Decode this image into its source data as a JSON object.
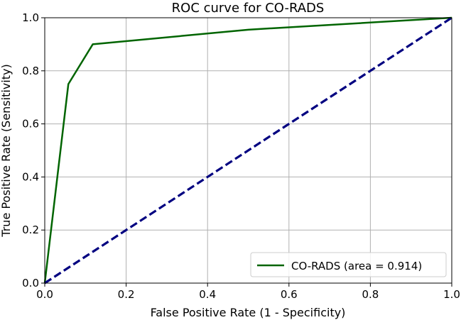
{
  "chart_data": {
    "type": "line",
    "title": "ROC curve for CO-RADS",
    "xlabel": "False Positive Rate (1 - Specificity)",
    "ylabel": "True Positive Rate (Sensitivity)",
    "xlim": [
      0.0,
      1.0
    ],
    "ylim": [
      0.0,
      1.0
    ],
    "x_ticks": [
      0.0,
      0.2,
      0.4,
      0.6,
      0.8,
      1.0
    ],
    "x_tick_labels": [
      "0.0",
      "0.2",
      "0.4",
      "0.6",
      "0.8",
      "1.0"
    ],
    "y_ticks": [
      0.0,
      0.2,
      0.4,
      0.6,
      0.8,
      1.0
    ],
    "y_tick_labels": [
      "0.0",
      "0.2",
      "0.4",
      "0.6",
      "0.8",
      "1.0"
    ],
    "grid": true,
    "legend_position": "lower-right",
    "series": [
      {
        "name": "CO-RADS (area = 0.914)",
        "color": "#006400",
        "style": "solid",
        "x": [
          0.0,
          0.058,
          0.118,
          0.5,
          1.0
        ],
        "y": [
          0.0,
          0.75,
          0.9,
          0.955,
          1.0
        ]
      },
      {
        "color": "#000080",
        "style": "dashed",
        "x": [
          0.0,
          1.0
        ],
        "y": [
          0.0,
          1.0
        ]
      }
    ]
  }
}
